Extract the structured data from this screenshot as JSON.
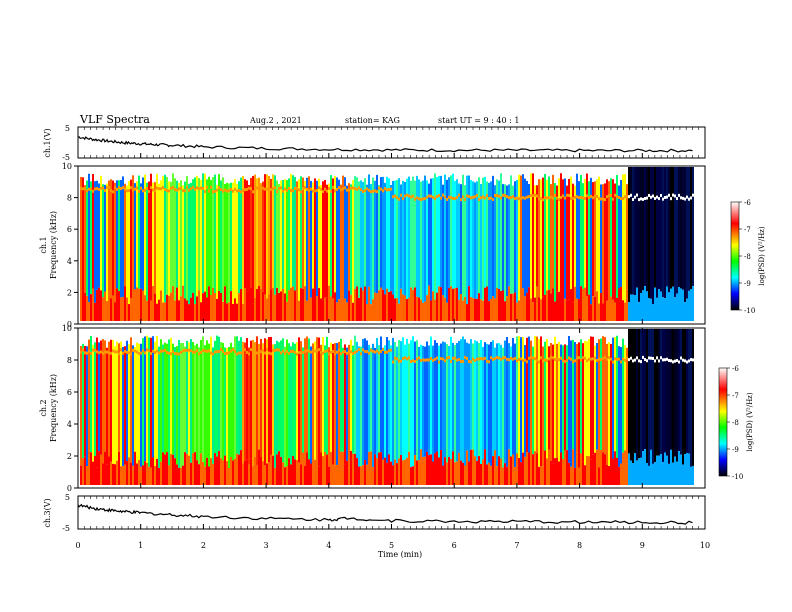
{
  "header": {
    "title": "VLF  Spectra",
    "date": "Aug.2  , 2021",
    "station": "station= KAG",
    "start": "start  UT =  9 : 40 : 1"
  },
  "colors": {
    "palette": [
      "#000000",
      "#000033",
      "#0000ff",
      "#00aaff",
      "#00ffff",
      "#00ff66",
      "#33ff00",
      "#ffff00",
      "#ff9900",
      "#ff0000",
      "#ff6666",
      "#ffffff"
    ]
  },
  "chart_data": [
    {
      "id": "ch1-voltage",
      "type": "line",
      "ylabel": "ch.1(V)",
      "yticks": [
        "5",
        "-5"
      ],
      "ylim": [
        -5,
        5
      ],
      "xlim": [
        0,
        10
      ],
      "x": [
        0,
        0.25,
        0.5,
        0.75,
        1.0,
        1.25,
        1.5,
        2,
        3,
        4,
        5,
        6,
        7,
        8,
        9,
        9.8
      ],
      "y": [
        1.8,
        1.0,
        0.4,
        -0.1,
        -0.4,
        -0.7,
        -0.9,
        -1.4,
        -1.9,
        -2.2,
        -2.4,
        -2.5,
        -2.5,
        -2.6,
        -2.6,
        -2.6
      ]
    },
    {
      "id": "ch1-spectrogram",
      "type": "heatmap",
      "ylabel": "Frequency (kHz)",
      "channel_label": "ch.1",
      "ylim": [
        0,
        10
      ],
      "xlim": [
        0,
        10
      ],
      "yticks": [
        "0",
        "2",
        "4",
        "6",
        "8",
        "10"
      ],
      "colorbar": {
        "label": "log(PSD) (V²/Hz)",
        "range": [
          -10,
          -6
        ],
        "ticks": [
          "-6",
          "-7",
          "-8",
          "-9",
          "-10"
        ]
      }
    },
    {
      "id": "ch2-spectrogram",
      "type": "heatmap",
      "ylabel": "Frequency (kHz)",
      "channel_label": "ch.2",
      "ylim": [
        0,
        10
      ],
      "xlim": [
        0,
        10
      ],
      "yticks": [
        "0",
        "2",
        "4",
        "6",
        "8",
        "10"
      ],
      "colorbar": {
        "label": "log(PSD) (V²/Hz)",
        "range": [
          -10,
          -6
        ],
        "ticks": [
          "-6",
          "-7",
          "-8",
          "-9",
          "-10"
        ]
      }
    },
    {
      "id": "ch3-voltage",
      "type": "line",
      "ylabel": "ch.3(V)",
      "yticks": [
        "5",
        "-5"
      ],
      "ylim": [
        -5,
        5
      ],
      "xlim": [
        0,
        10
      ],
      "x": [
        0,
        0.25,
        0.5,
        0.75,
        1.0,
        1.5,
        2,
        3,
        4,
        4.3,
        5,
        6,
        7,
        8,
        9,
        9.8
      ],
      "y": [
        2.2,
        1.3,
        0.7,
        0.2,
        -0.1,
        -0.7,
        -1.2,
        -1.8,
        -2.2,
        -1.7,
        -2.5,
        -2.7,
        -2.8,
        -2.9,
        -3.0,
        -3.1
      ]
    },
    {
      "id": "time-axis",
      "type": "line",
      "xlabel": "Time  (min)",
      "xticks": [
        "0",
        "1",
        "2",
        "3",
        "4",
        "5",
        "6",
        "7",
        "8",
        "9",
        "10"
      ]
    }
  ],
  "regimes": [
    {
      "from": 0.0,
      "to": 1.25,
      "level": "mixed"
    },
    {
      "from": 1.25,
      "to": 2.6,
      "level": "green"
    },
    {
      "from": 2.6,
      "to": 3.1,
      "level": "red"
    },
    {
      "from": 3.1,
      "to": 3.45,
      "level": "green"
    },
    {
      "from": 3.45,
      "to": 4.4,
      "level": "mixed"
    },
    {
      "from": 4.4,
      "to": 7.0,
      "level": "blue"
    },
    {
      "from": 7.0,
      "to": 8.75,
      "level": "mixed"
    },
    {
      "from": 8.75,
      "to": 9.8,
      "level": "dark"
    }
  ]
}
